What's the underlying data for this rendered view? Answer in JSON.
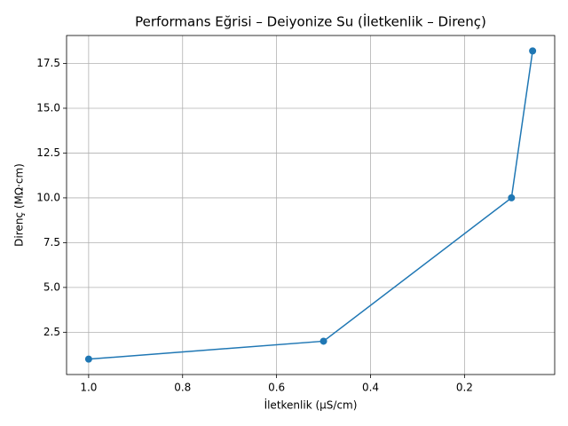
{
  "chart_data": {
    "type": "line",
    "title": "Performans Eğrisi – Deiyonize Su (İletkenlik – Direnç)",
    "x_label": "İletkenlik (µS/cm)",
    "y_label": "Direnç (MΩ·cm)",
    "x": [
      1.0,
      0.5,
      0.1,
      0.055
    ],
    "series": [
      {
        "color": "#1f77b4",
        "values": [
          1,
          2,
          10,
          18.2
        ]
      }
    ],
    "xlim": [
      1.047,
      0.008
    ],
    "xticks": [
      {
        "value": 1.0,
        "label": "1.0"
      },
      {
        "value": 0.8,
        "label": "0.8"
      },
      {
        "value": 0.6,
        "label": "0.6"
      },
      {
        "value": 0.4,
        "label": "0.4"
      },
      {
        "value": 0.2,
        "label": "0.2"
      }
    ],
    "ylim": [
      0.14,
      19.06
    ],
    "yticks": [
      2.5,
      {
        "value": 5.0,
        "label": "5.0"
      },
      7.5,
      {
        "value": 10.0,
        "label": "10.0"
      },
      12.5,
      {
        "value": 15.0,
        "label": "15.0"
      },
      17.5
    ],
    "grid": true
  }
}
